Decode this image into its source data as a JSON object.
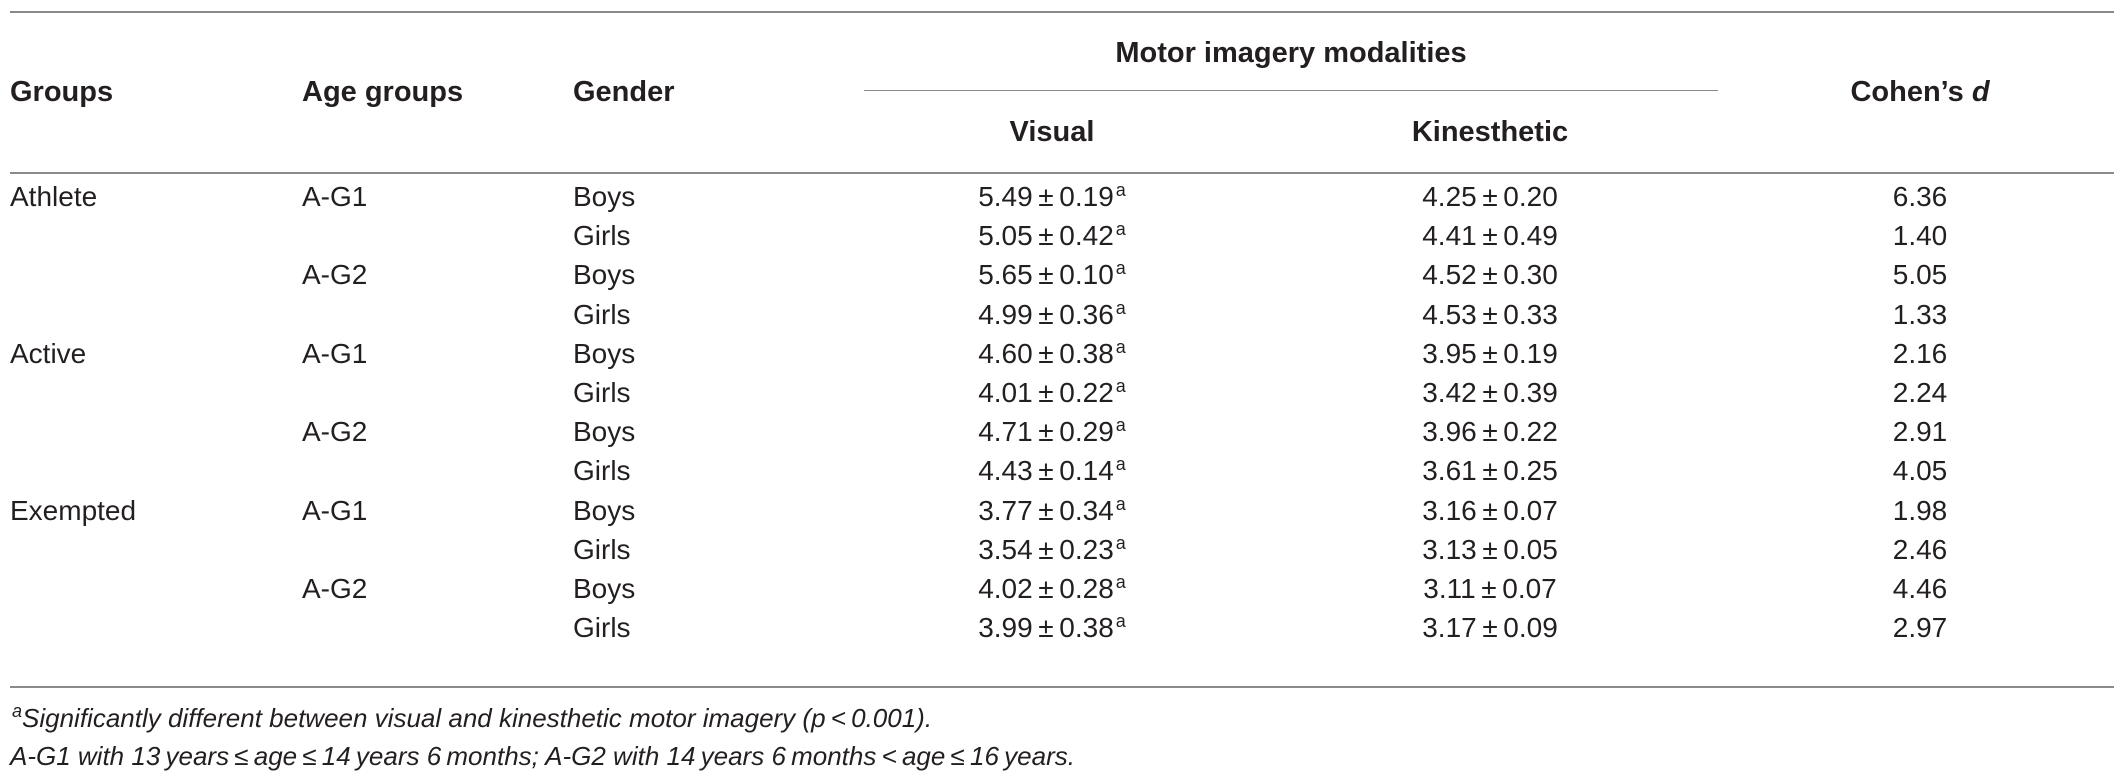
{
  "table": {
    "headers": {
      "groups": "Groups",
      "age_groups": "Age groups",
      "gender": "Gender",
      "modalities": "Motor imagery modalities",
      "visual": "Visual",
      "kinesthetic": "Kinesthetic",
      "cohens_prefix": "Cohen’s ",
      "cohens_d": "d"
    },
    "rows": [
      {
        "group": "Athlete",
        "age": "A-G1",
        "gender": "Boys",
        "visual": "5.49 ± 0.19",
        "visual_sup": "a",
        "kinesthetic": "4.25 ± 0.20",
        "d": "6.36"
      },
      {
        "group": "",
        "age": "",
        "gender": "Girls",
        "visual": "5.05 ± 0.42",
        "visual_sup": "a",
        "kinesthetic": "4.41 ± 0.49",
        "d": "1.40"
      },
      {
        "group": "",
        "age": "A-G2",
        "gender": "Boys",
        "visual": "5.65 ± 0.10",
        "visual_sup": "a",
        "kinesthetic": "4.52 ± 0.30",
        "d": "5.05"
      },
      {
        "group": "",
        "age": "",
        "gender": "Girls",
        "visual": "4.99 ± 0.36",
        "visual_sup": "a",
        "kinesthetic": "4.53 ± 0.33",
        "d": "1.33"
      },
      {
        "group": "Active",
        "age": "A-G1",
        "gender": "Boys",
        "visual": "4.60 ± 0.38",
        "visual_sup": "a",
        "kinesthetic": "3.95 ± 0.19",
        "d": "2.16"
      },
      {
        "group": "",
        "age": "",
        "gender": "Girls",
        "visual": "4.01 ± 0.22",
        "visual_sup": "a",
        "kinesthetic": "3.42 ± 0.39",
        "d": "2.24"
      },
      {
        "group": "",
        "age": "A-G2",
        "gender": "Boys",
        "visual": "4.71 ± 0.29",
        "visual_sup": "a",
        "kinesthetic": "3.96 ± 0.22",
        "d": "2.91"
      },
      {
        "group": "",
        "age": "",
        "gender": "Girls",
        "visual": "4.43 ± 0.14",
        "visual_sup": "a",
        "kinesthetic": "3.61 ± 0.25",
        "d": "4.05"
      },
      {
        "group": "Exempted",
        "age": "A-G1",
        "gender": "Boys",
        "visual": "3.77 ± 0.34",
        "visual_sup": "a",
        "kinesthetic": "3.16 ± 0.07",
        "d": "1.98"
      },
      {
        "group": "",
        "age": "",
        "gender": "Girls",
        "visual": "3.54 ± 0.23",
        "visual_sup": "a",
        "kinesthetic": "3.13 ± 0.05",
        "d": "2.46"
      },
      {
        "group": "",
        "age": "A-G2",
        "gender": "Boys",
        "visual": "4.02 ± 0.28",
        "visual_sup": "a",
        "kinesthetic": "3.11 ± 0.07",
        "d": "4.46"
      },
      {
        "group": "",
        "age": "",
        "gender": "Girls",
        "visual": "3.99 ± 0.38",
        "visual_sup": "a",
        "kinesthetic": "3.17 ± 0.09",
        "d": "2.97"
      }
    ]
  },
  "footnotes": {
    "note1_sup": "a",
    "note1": "Significantly different between visual and kinesthetic motor imagery (p < 0.001).",
    "note2": "A-G1 with 13 years ≤ age ≤ 14 years 6 months; A-G2 with 14 years 6 months < age ≤ 16 years."
  }
}
